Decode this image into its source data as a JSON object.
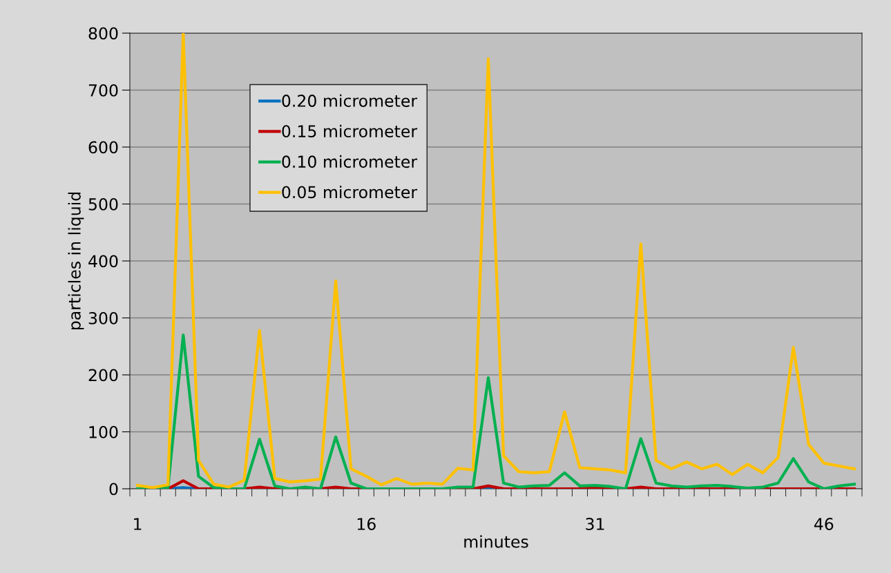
{
  "chart_data": {
    "type": "line",
    "xlabel": "minutes",
    "ylabel": "particles in liquid",
    "categories": [
      "1",
      null,
      null,
      null,
      null,
      null,
      null,
      null,
      null,
      null,
      null,
      null,
      null,
      null,
      null,
      "16",
      null,
      null,
      null,
      null,
      null,
      null,
      null,
      null,
      null,
      null,
      null,
      null,
      null,
      null,
      "31",
      null,
      null,
      null,
      null,
      null,
      null,
      null,
      null,
      null,
      null,
      null,
      null,
      null,
      null,
      "46",
      null,
      null
    ],
    "ylim": [
      0,
      800
    ],
    "yticks": [
      0,
      100,
      200,
      300,
      400,
      500,
      600,
      700,
      800
    ],
    "grid": "y",
    "legend": "top left",
    "marker": "none",
    "line_style": "solid",
    "series": [
      {
        "name": "0.20 micrometer",
        "color": "#0070c0",
        "values": [
          null,
          null,
          0,
          2,
          0,
          null,
          null,
          null,
          null,
          null,
          null,
          null,
          null,
          null,
          null,
          null,
          null,
          null,
          null,
          null,
          null,
          null,
          0,
          1,
          0,
          null,
          null,
          null,
          null,
          null,
          null,
          null,
          null,
          null,
          null,
          null,
          null,
          null,
          null,
          null,
          null,
          null,
          null,
          null,
          null,
          null,
          null,
          null
        ]
      },
      {
        "name": "0.15 micrometer",
        "color": "#c00000",
        "values": [
          0,
          0,
          0,
          14,
          0,
          0,
          0,
          0,
          3,
          0,
          0,
          0,
          0,
          3,
          0,
          0,
          0,
          0,
          0,
          0,
          0,
          0,
          0,
          5,
          0,
          0,
          0,
          0,
          0,
          0,
          2,
          0,
          0,
          3,
          0,
          0,
          0,
          0,
          0,
          0,
          0,
          0,
          0,
          0,
          0,
          0,
          0,
          0
        ]
      },
      {
        "name": "0.10 micrometer",
        "color": "#00b050",
        "values": [
          0,
          0,
          2,
          270,
          22,
          2,
          0,
          0,
          87,
          5,
          0,
          3,
          0,
          91,
          10,
          0,
          0,
          0,
          0,
          0,
          0,
          3,
          3,
          195,
          10,
          3,
          5,
          6,
          28,
          5,
          6,
          4,
          0,
          88,
          10,
          5,
          3,
          5,
          6,
          4,
          1,
          3,
          10,
          53,
          12,
          0,
          5,
          8
        ]
      },
      {
        "name": "0.05 micrometer",
        "color": "#ffc000",
        "values": [
          6,
          2,
          7,
          800,
          50,
          8,
          3,
          15,
          278,
          18,
          12,
          14,
          17,
          365,
          35,
          22,
          7,
          18,
          8,
          10,
          8,
          36,
          33,
          755,
          58,
          30,
          28,
          30,
          135,
          37,
          35,
          33,
          28,
          430,
          50,
          35,
          47,
          35,
          43,
          25,
          43,
          28,
          55,
          248,
          78,
          45,
          40,
          35
        ]
      }
    ]
  }
}
